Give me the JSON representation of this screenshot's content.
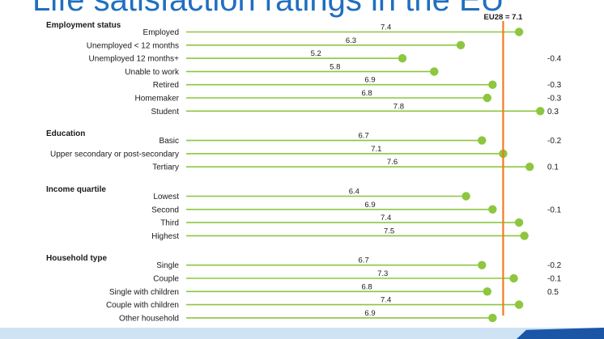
{
  "page_title": "Life satisfaction ratings in the EU",
  "colors": {
    "accent": "#ee7d21",
    "dot": "#8dc63f",
    "line": "#8dc63f",
    "title": "#1f6fc0"
  },
  "chart_data": {
    "type": "dot",
    "title": "Life satisfaction ratings in the EU",
    "reference": {
      "label": "EU28 = 7.1",
      "value": 7.1
    },
    "groups": [
      {
        "name": "Employment status",
        "rows": [
          {
            "label": "Employed",
            "value": 7.4,
            "diff": ""
          },
          {
            "label": "Unemployed < 12 months",
            "value": 6.3,
            "diff": ""
          },
          {
            "label": "Unemployed 12 months+",
            "value": 5.2,
            "diff": "-0.4"
          },
          {
            "label": "Unable to work",
            "value": 5.8,
            "diff": ""
          },
          {
            "label": "Retired",
            "value": 6.9,
            "diff": "-0.3"
          },
          {
            "label": "Homemaker",
            "value": 6.8,
            "diff": "-0.3"
          },
          {
            "label": "Student",
            "value": 7.8,
            "diff": "0.3"
          }
        ]
      },
      {
        "name": "Education",
        "rows": [
          {
            "label": "Basic",
            "value": 6.7,
            "diff": "-0.2"
          },
          {
            "label": "Upper secondary or post-secondary",
            "value": 7.1,
            "diff": ""
          },
          {
            "label": "Tertiary",
            "value": 7.6,
            "diff": "0.1"
          }
        ]
      },
      {
        "name": "Income quartile",
        "rows": [
          {
            "label": "Lowest",
            "value": 6.4,
            "diff": ""
          },
          {
            "label": "Second",
            "value": 6.9,
            "diff": "-0.1"
          },
          {
            "label": "Third",
            "value": 7.4,
            "diff": ""
          },
          {
            "label": "Highest",
            "value": 7.5,
            "diff": ""
          }
        ]
      },
      {
        "name": "Household type",
        "rows": [
          {
            "label": "Single",
            "value": 6.7,
            "diff": "-0.2"
          },
          {
            "label": "Couple",
            "value": 7.3,
            "diff": "-0.1"
          },
          {
            "label": "Single with children",
            "value": 6.8,
            "diff": "0.5"
          },
          {
            "label": "Couple with children",
            "value": 7.4,
            "diff": ""
          },
          {
            "label": "Other household",
            "value": 6.9,
            "diff": ""
          }
        ]
      }
    ]
  }
}
